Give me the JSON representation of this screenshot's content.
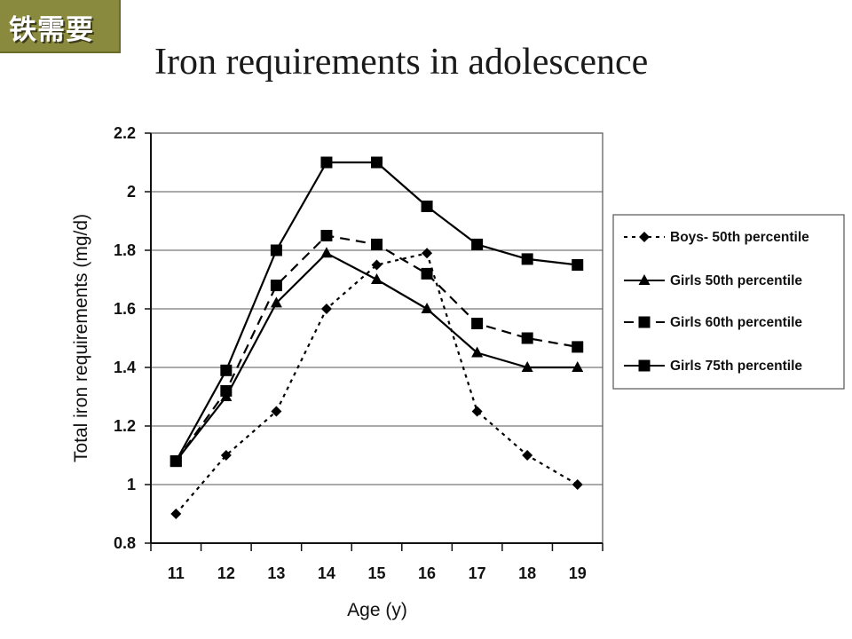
{
  "badge": {
    "text": "铁需要",
    "color": "#8a8a3e"
  },
  "title": "Iron requirements in adolescence",
  "chart_data": {
    "type": "line",
    "title": "Iron requirements in adolescence",
    "xlabel": "Age (y)",
    "ylabel": "Total iron requirements (mg/d)",
    "x": [
      11,
      12,
      13,
      14,
      15,
      16,
      17,
      18,
      19
    ],
    "xticks": [
      "11",
      "12",
      "13",
      "14",
      "15",
      "16",
      "17",
      "18",
      "19"
    ],
    "ylim": [
      0.8,
      2.2
    ],
    "yticks": [
      "0.8",
      "1",
      "1.2",
      "1.4",
      "1.6",
      "1.8",
      "2",
      "2.2"
    ],
    "grid": "horizontal",
    "legend_position": "right",
    "series": [
      {
        "name": "Boys- 50th percentile",
        "marker": "diamond",
        "line": "dotted",
        "values": [
          0.9,
          1.1,
          1.25,
          1.6,
          1.75,
          1.79,
          1.25,
          1.1,
          1.0
        ]
      },
      {
        "name": "Girls 50th percentile",
        "marker": "triangle",
        "line": "solid",
        "values": [
          1.08,
          1.3,
          1.62,
          1.79,
          1.7,
          1.6,
          1.45,
          1.4,
          1.4
        ]
      },
      {
        "name": "Girls 60th percentile",
        "marker": "square",
        "line": "dashed",
        "values": [
          1.08,
          1.32,
          1.68,
          1.85,
          1.82,
          1.72,
          1.55,
          1.5,
          1.47
        ]
      },
      {
        "name": "Girls 75th percentile",
        "marker": "square",
        "line": "solid",
        "values": [
          1.08,
          1.39,
          1.8,
          2.1,
          2.1,
          1.95,
          1.82,
          1.77,
          1.75
        ]
      }
    ]
  }
}
